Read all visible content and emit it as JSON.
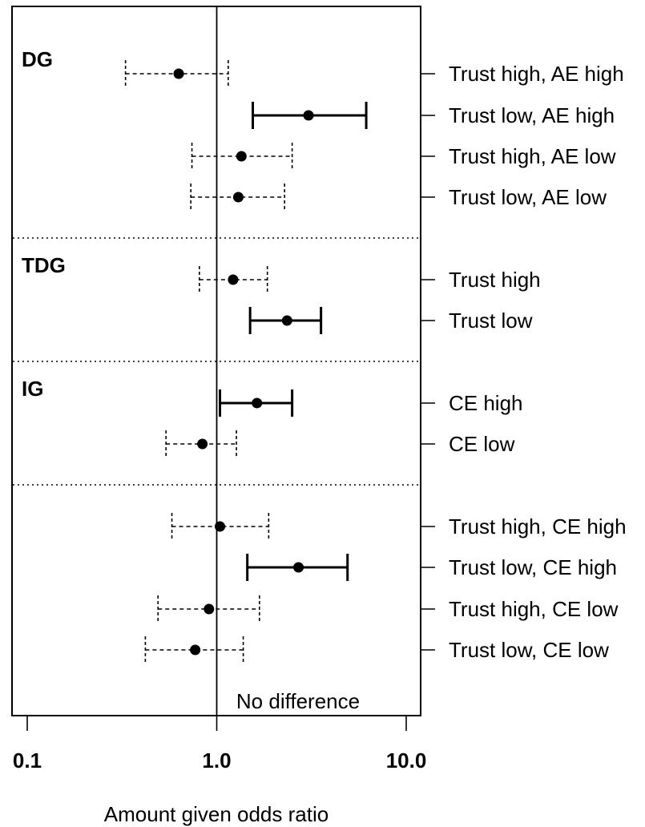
{
  "chart_data": {
    "type": "forest",
    "xlabel": "Amount given odds ratio",
    "x_scale": "log",
    "xlim": [
      0.1,
      10.0
    ],
    "x_ticks": [
      "0.1",
      "1.0",
      "10.0"
    ],
    "reference_line": {
      "value": 1.0,
      "label": "No difference"
    },
    "groups": [
      {
        "label": "DG",
        "rows": [
          {
            "label": "Trust high, AE high",
            "estimate": 0.63,
            "lower": 0.33,
            "upper": 1.15,
            "significant": false
          },
          {
            "label": "Trust low, AE high",
            "estimate": 3.05,
            "lower": 1.55,
            "upper": 6.15,
            "significant": true
          },
          {
            "label": "Trust high, AE low",
            "estimate": 1.35,
            "lower": 0.74,
            "upper": 2.5,
            "significant": false
          },
          {
            "label": "Trust low, AE low",
            "estimate": 1.3,
            "lower": 0.73,
            "upper": 2.28,
            "significant": false
          }
        ]
      },
      {
        "label": "TDG",
        "rows": [
          {
            "label": "Trust high",
            "estimate": 1.22,
            "lower": 0.81,
            "upper": 1.85,
            "significant": false
          },
          {
            "label": "Trust low",
            "estimate": 2.35,
            "lower": 1.5,
            "upper": 3.55,
            "significant": true
          }
        ]
      },
      {
        "label": "IG",
        "rows": [
          {
            "label": "CE high",
            "estimate": 1.63,
            "lower": 1.04,
            "upper": 2.5,
            "significant": true
          },
          {
            "label": "CE low",
            "estimate": 0.84,
            "lower": 0.54,
            "upper": 1.27,
            "significant": false
          }
        ]
      },
      {
        "label": "",
        "rows": [
          {
            "label": "Trust high, CE high",
            "estimate": 1.04,
            "lower": 0.58,
            "upper": 1.88,
            "significant": false
          },
          {
            "label": "Trust low, CE high",
            "estimate": 2.7,
            "lower": 1.45,
            "upper": 4.9,
            "significant": true
          },
          {
            "label": "Trust high, CE low",
            "estimate": 0.91,
            "lower": 0.49,
            "upper": 1.68,
            "significant": false
          },
          {
            "label": "Trust low, CE low",
            "estimate": 0.77,
            "lower": 0.42,
            "upper": 1.38,
            "significant": false
          }
        ]
      }
    ]
  }
}
